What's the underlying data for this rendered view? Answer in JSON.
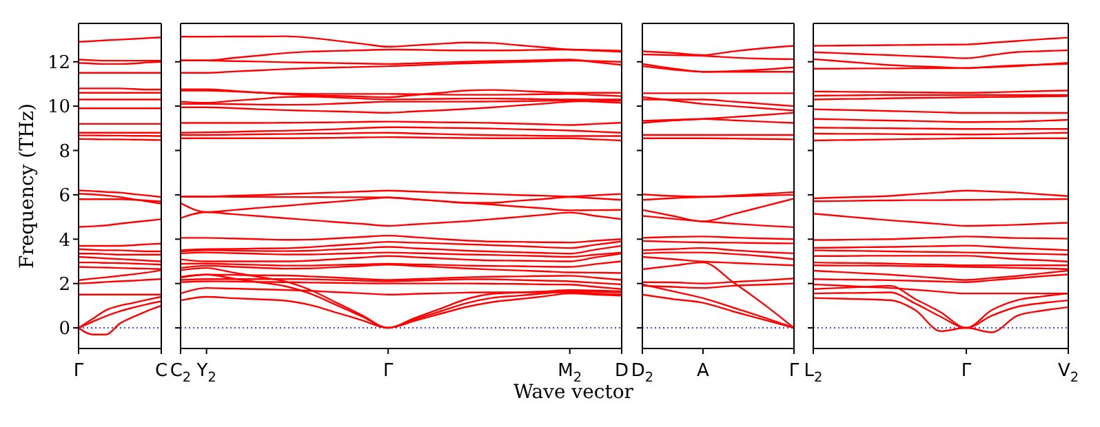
{
  "chart_data": [
    {
      "type": "line",
      "ylabel": "Frequency (THz)",
      "color": "#ff0000",
      "categories": [
        "Γ",
        null,
        null,
        null,
        null,
        null,
        "C"
      ],
      "ylim": [
        -0.93,
        13.73
      ],
      "yticks": [
        0,
        2,
        4,
        6,
        8,
        10,
        12
      ],
      "ref_lines": [
        {
          "axis": "y",
          "value": 0,
          "color": "#0000ff",
          "line_style": "dotted"
        }
      ],
      "series": [
        {
          "values": [
            12.9,
            12.93,
            12.97,
            13.0,
            13.03,
            13.07,
            13.1
          ]
        },
        {
          "values": [
            12.1,
            12.07,
            12.05,
            12.05,
            12.05,
            12.05,
            12.05
          ]
        },
        {
          "values": [
            11.95,
            11.92,
            11.9,
            11.9,
            11.92,
            11.97,
            12.0
          ]
        },
        {
          "values": [
            11.5,
            11.5,
            11.5,
            11.5,
            11.5,
            11.5,
            11.5
          ]
        },
        {
          "values": [
            10.8,
            10.8,
            10.8,
            10.8,
            10.77,
            10.75,
            10.75
          ]
        },
        {
          "values": [
            10.6,
            10.6,
            10.6,
            10.6,
            10.6,
            10.6,
            10.6
          ]
        },
        {
          "values": [
            10.3,
            10.3,
            10.3,
            10.3,
            10.3,
            10.3,
            10.3
          ]
        },
        {
          "values": [
            9.9,
            9.9,
            9.9,
            9.9,
            9.9,
            9.9,
            9.9
          ]
        },
        {
          "values": [
            9.2,
            9.2,
            9.2,
            9.2,
            9.2,
            9.2,
            9.2
          ]
        },
        {
          "values": [
            8.8,
            8.8,
            8.8,
            8.8,
            8.8,
            8.8,
            8.8
          ]
        },
        {
          "values": [
            8.68,
            8.68,
            8.67,
            8.67,
            8.66,
            8.66,
            8.65
          ]
        },
        {
          "values": [
            8.52,
            8.51,
            8.5,
            8.5,
            8.49,
            8.48,
            8.47
          ]
        },
        {
          "values": [
            6.2,
            6.17,
            6.13,
            6.1,
            6.03,
            5.97,
            5.9
          ]
        },
        {
          "values": [
            6.05,
            6.02,
            5.97,
            5.9,
            5.8,
            5.7,
            5.6
          ]
        },
        {
          "values": [
            5.8,
            5.8,
            5.8,
            5.8,
            5.78,
            5.74,
            5.7
          ]
        },
        {
          "values": [
            4.55,
            4.58,
            4.62,
            4.7,
            4.77,
            4.83,
            4.9
          ]
        },
        {
          "values": [
            3.7,
            3.7,
            3.7,
            3.7,
            3.73,
            3.77,
            3.8
          ]
        },
        {
          "values": [
            3.55,
            3.52,
            3.5,
            3.5,
            3.47,
            3.45,
            3.45
          ]
        },
        {
          "values": [
            3.35,
            3.35,
            3.33,
            3.3,
            3.3,
            3.3,
            3.3
          ]
        },
        {
          "values": [
            3.2,
            3.17,
            3.13,
            3.1,
            3.07,
            3.03,
            3.0
          ]
        },
        {
          "values": [
            2.95,
            2.95,
            2.93,
            2.92,
            2.9,
            2.88,
            2.85
          ]
        },
        {
          "values": [
            2.75,
            2.73,
            2.72,
            2.7,
            2.68,
            2.67,
            2.65
          ]
        },
        {
          "values": [
            2.15,
            2.22,
            2.28,
            2.35,
            2.42,
            2.5,
            2.6
          ]
        },
        {
          "values": [
            2.0,
            2.03,
            2.07,
            2.1,
            2.13,
            2.17,
            2.2
          ]
        },
        {
          "values": [
            1.5,
            1.5,
            1.5,
            1.5,
            1.5,
            1.5,
            1.5
          ]
        },
        {
          "values": [
            0,
            0.4,
            0.8,
            1.0,
            1.13,
            1.27,
            1.4
          ]
        },
        {
          "values": [
            0,
            0.27,
            0.53,
            0.75,
            0.92,
            1.07,
            1.2
          ]
        },
        {
          "values": [
            0,
            -0.3,
            -0.3,
            0.2,
            0.5,
            0.77,
            1.0
          ]
        }
      ]
    },
    {
      "type": "line",
      "xlabel": "Wave vector",
      "tick_labels": "x",
      "color": "#ff0000",
      "categories": [
        "C$_{2}$",
        "Y$_{2}$",
        null,
        null,
        null,
        null,
        null,
        null,
        "Γ",
        null,
        null,
        null,
        null,
        null,
        null,
        "M$_{2}$",
        null,
        "D"
      ],
      "ylim": [
        -0.93,
        13.73
      ],
      "yticks": [
        0,
        2,
        4,
        6,
        8,
        10,
        12
      ],
      "ref_lines": [
        {
          "axis": "y",
          "value": 0,
          "color": "#0000ff",
          "line_style": "dotted"
        }
      ],
      "series": [
        {
          "values": [
            13.13,
            13.13,
            13.14,
            13.14,
            13.15,
            13.08,
            12.95,
            12.81,
            12.68,
            12.74,
            12.81,
            12.87,
            12.85,
            12.75,
            12.65,
            12.55,
            12.53,
            12.5
          ]
        },
        {
          "values": [
            12.06,
            12.06,
            12.17,
            12.28,
            12.39,
            12.46,
            12.49,
            12.52,
            12.55,
            12.54,
            12.52,
            12.51,
            12.51,
            12.52,
            12.54,
            12.55,
            12.5,
            12.45
          ]
        },
        {
          "values": [
            12.06,
            12.06,
            12.03,
            12.01,
            11.98,
            11.96,
            11.94,
            11.92,
            11.9,
            11.93,
            11.97,
            12.0,
            12.03,
            12.05,
            12.08,
            12.1,
            11.98,
            11.86
          ]
        },
        {
          "values": [
            11.5,
            11.5,
            11.56,
            11.61,
            11.67,
            11.71,
            11.74,
            11.77,
            11.8,
            11.84,
            11.89,
            11.93,
            11.96,
            11.99,
            12.02,
            12.05,
            12.03,
            12.0
          ]
        },
        {
          "values": [
            10.76,
            10.76,
            10.69,
            10.61,
            10.54,
            10.49,
            10.46,
            10.43,
            10.4,
            10.5,
            10.6,
            10.7,
            10.73,
            10.69,
            10.64,
            10.6,
            10.6,
            10.6
          ]
        },
        {
          "values": [
            10.7,
            10.7,
            10.66,
            10.61,
            10.57,
            10.55,
            10.55,
            10.55,
            10.55,
            10.54,
            10.52,
            10.51,
            10.51,
            10.52,
            10.54,
            10.55,
            10.5,
            10.45
          ]
        },
        {
          "values": [
            10.2,
            10.15,
            10.24,
            10.32,
            10.41,
            10.43,
            10.39,
            10.34,
            10.3,
            10.31,
            10.33,
            10.34,
            10.34,
            10.33,
            10.31,
            10.3,
            10.3,
            10.3
          ]
        },
        {
          "values": [
            10.1,
            10.1,
            10.09,
            10.07,
            10.06,
            10.07,
            10.11,
            10.16,
            10.2,
            10.2,
            10.2,
            10.2,
            10.21,
            10.22,
            10.24,
            10.25,
            10.2,
            10.15
          ]
        },
        {
          "values": [
            9.95,
            9.95,
            9.91,
            9.86,
            9.82,
            9.79,
            9.76,
            9.73,
            9.7,
            9.76,
            9.81,
            9.87,
            9.94,
            10.03,
            10.11,
            10.2,
            10.23,
            10.25
          ]
        },
        {
          "values": [
            9.24,
            9.24,
            9.24,
            9.24,
            9.25,
            9.26,
            9.27,
            9.29,
            9.3,
            9.29,
            9.27,
            9.26,
            9.24,
            9.21,
            9.18,
            9.15,
            9.2,
            9.25
          ]
        },
        {
          "values": [
            8.8,
            8.82,
            8.84,
            8.87,
            8.89,
            8.92,
            8.96,
            9.01,
            9.05,
            9.04,
            9.02,
            9.01,
            8.99,
            8.96,
            8.93,
            8.9,
            8.85,
            8.8
          ]
        },
        {
          "values": [
            8.7,
            8.7,
            8.71,
            8.73,
            8.74,
            8.76,
            8.77,
            8.79,
            8.8,
            8.77,
            8.74,
            8.71,
            8.69,
            8.68,
            8.66,
            8.65,
            8.65,
            8.65
          ]
        },
        {
          "values": [
            8.55,
            8.55,
            8.55,
            8.55,
            8.55,
            8.56,
            8.57,
            8.59,
            8.6,
            8.59,
            8.57,
            8.56,
            8.55,
            8.55,
            8.55,
            8.55,
            8.5,
            8.45
          ]
        },
        {
          "values": [
            5.92,
            5.92,
            5.96,
            5.99,
            6.03,
            6.07,
            6.11,
            6.15,
            6.19,
            6.15,
            6.11,
            6.07,
            6.03,
            5.99,
            5.96,
            5.92,
            5.98,
            6.04
          ]
        },
        {
          "values": [
            5.63,
            5.22,
            5.31,
            5.41,
            5.5,
            5.6,
            5.69,
            5.79,
            5.88,
            5.8,
            5.72,
            5.64,
            5.64,
            5.73,
            5.81,
            5.9,
            5.84,
            5.77
          ]
        },
        {
          "values": [
            4.95,
            5.22,
            5.13,
            5.04,
            4.95,
            4.86,
            4.77,
            4.69,
            4.6,
            4.67,
            4.74,
            4.81,
            4.9,
            5.0,
            5.1,
            5.2,
            5.05,
            4.9
          ]
        },
        {
          "values": [
            5.92,
            5.92,
            5.91,
            5.91,
            5.9,
            5.9,
            5.89,
            5.89,
            5.88,
            5.8,
            5.72,
            5.64,
            5.56,
            5.47,
            5.39,
            5.3,
            5.31,
            5.32
          ]
        },
        {
          "values": [
            4.06,
            4.06,
            4.03,
            4.0,
            3.97,
            3.98,
            4.04,
            4.1,
            4.16,
            4.09,
            4.01,
            3.94,
            3.89,
            3.88,
            3.86,
            3.85,
            3.93,
            4.0
          ]
        },
        {
          "values": [
            3.5,
            3.55,
            3.56,
            3.58,
            3.59,
            3.64,
            3.72,
            3.8,
            3.88,
            3.84,
            3.81,
            3.77,
            3.73,
            3.69,
            3.64,
            3.6,
            3.75,
            3.9
          ]
        },
        {
          "values": [
            3.45,
            3.5,
            3.49,
            3.47,
            3.46,
            3.48,
            3.54,
            3.59,
            3.65,
            3.59,
            3.54,
            3.48,
            3.44,
            3.41,
            3.38,
            3.35,
            3.53,
            3.7
          ]
        },
        {
          "values": [
            3.36,
            3.4,
            3.37,
            3.34,
            3.31,
            3.31,
            3.34,
            3.37,
            3.4,
            3.37,
            3.34,
            3.31,
            3.29,
            3.26,
            3.23,
            3.2,
            3.3,
            3.4
          ]
        },
        {
          "values": [
            3.09,
            3.0,
            3.0,
            3.0,
            3.0,
            3.03,
            3.1,
            3.17,
            3.24,
            3.19,
            3.13,
            3.08,
            3.04,
            3.03,
            3.01,
            3.0,
            3.18,
            3.35
          ]
        },
        {
          "values": [
            2.89,
            2.9,
            2.87,
            2.84,
            2.81,
            2.81,
            2.84,
            2.86,
            2.89,
            2.86,
            2.84,
            2.81,
            2.79,
            2.78,
            2.76,
            2.75,
            2.88,
            3.0
          ]
        },
        {
          "values": [
            2.7,
            2.8,
            2.76,
            2.71,
            2.67,
            2.68,
            2.74,
            2.79,
            2.85,
            2.79,
            2.74,
            2.68,
            2.63,
            2.59,
            2.55,
            2.5,
            2.49,
            2.47
          ]
        },
        {
          "values": [
            2.27,
            2.4,
            2.39,
            2.37,
            2.36,
            2.32,
            2.27,
            2.21,
            2.16,
            2.2,
            2.24,
            2.28,
            2.31,
            2.32,
            2.34,
            2.35,
            2.26,
            2.16
          ]
        },
        {
          "values": [
            2.16,
            2.2,
            2.2,
            2.2,
            2.2,
            2.19,
            2.16,
            2.13,
            2.1,
            2.13,
            2.16,
            2.19,
            2.19,
            2.16,
            2.13,
            2.1,
            2.03,
            1.96
          ]
        },
        {
          "values": [
            2.06,
            2.1,
            2.09,
            2.07,
            2.06,
            2.04,
            2.03,
            2.01,
            2.0,
            2.0,
            2.0,
            2.0,
            1.99,
            1.98,
            1.96,
            1.95,
            1.85,
            1.75
          ]
        },
        {
          "values": [
            1.55,
            1.8,
            1.77,
            1.74,
            1.71,
            1.67,
            1.61,
            1.56,
            1.5,
            1.53,
            1.56,
            1.59,
            1.6,
            1.6,
            1.6,
            1.6,
            1.55,
            1.5
          ]
        },
        {
          "values": [
            2.6,
            2.7,
            2.5,
            2.3,
            2.1,
            1.71,
            1.14,
            0.57,
            0,
            0.43,
            0.86,
            1.29,
            1.53,
            1.59,
            1.64,
            1.7,
            1.68,
            1.65
          ]
        },
        {
          "values": [
            2.3,
            2.4,
            2.23,
            2.06,
            1.89,
            1.54,
            1.03,
            0.51,
            0,
            0.37,
            0.74,
            1.11,
            1.35,
            1.45,
            1.55,
            1.65,
            1.63,
            1.6
          ]
        },
        {
          "values": [
            1.24,
            1.4,
            1.34,
            1.29,
            1.23,
            1.03,
            0.69,
            0.34,
            0,
            0.31,
            0.63,
            0.94,
            1.16,
            1.29,
            1.42,
            1.55,
            1.5,
            1.45
          ]
        }
      ]
    },
    {
      "type": "line",
      "tick_labels": "x",
      "color": "#ff0000",
      "categories": [
        "D$_{2}$",
        null,
        "A",
        null,
        null,
        "Γ"
      ],
      "ylim": [
        -0.93,
        13.73
      ],
      "yticks": [
        0,
        2,
        4,
        6,
        8,
        10,
        12
      ],
      "ref_lines": [
        {
          "axis": "y",
          "value": 0,
          "color": "#0000ff",
          "line_style": "dotted"
        }
      ],
      "series": [
        {
          "values": [
            12.47,
            12.4,
            12.3,
            12.47,
            12.61,
            12.72
          ]
        },
        {
          "values": [
            12.33,
            12.3,
            12.27,
            12.19,
            12.14,
            12.12
          ]
        },
        {
          "values": [
            11.9,
            11.7,
            11.55,
            11.58,
            11.65,
            11.75
          ]
        },
        {
          "values": [
            11.8,
            11.65,
            11.55,
            11.55,
            11.55,
            11.55
          ]
        },
        {
          "values": [
            10.58,
            10.58,
            10.58,
            10.58,
            10.58,
            10.58
          ]
        },
        {
          "values": [
            10.41,
            10.25,
            10.1,
            10.0,
            9.9,
            9.8
          ]
        },
        {
          "values": [
            10.3,
            10.3,
            10.3,
            10.2,
            10.1,
            10.0
          ]
        },
        {
          "values": [
            9.24,
            9.35,
            9.42,
            9.51,
            9.6,
            9.7
          ]
        },
        {
          "values": [
            9.34,
            9.38,
            9.42,
            9.36,
            9.3,
            9.24
          ]
        },
        {
          "values": [
            8.7,
            8.7,
            8.7,
            8.7,
            8.7,
            8.7
          ]
        },
        {
          "values": [
            8.55,
            8.55,
            8.55,
            8.54,
            8.52,
            8.5
          ]
        },
        {
          "values": [
            6.02,
            5.95,
            5.92,
            5.97,
            6.04,
            6.12
          ]
        },
        {
          "values": [
            5.77,
            5.85,
            5.9,
            5.93,
            5.97,
            6.0
          ]
        },
        {
          "values": [
            5.32,
            5.05,
            4.8,
            5.13,
            5.48,
            5.83
          ]
        },
        {
          "values": [
            5.05,
            4.92,
            4.8,
            4.7,
            4.61,
            4.54
          ]
        },
        {
          "values": [
            4.06,
            4.1,
            4.12,
            4.07,
            4.03,
            4.0
          ]
        },
        {
          "values": [
            3.92,
            3.88,
            3.85,
            3.84,
            3.82,
            3.81
          ]
        },
        {
          "values": [
            3.5,
            3.55,
            3.6,
            3.5,
            3.42,
            3.36
          ]
        },
        {
          "values": [
            3.36,
            3.4,
            3.4,
            3.33,
            3.23,
            3.09
          ]
        },
        {
          "values": [
            3.2,
            3.1,
            2.99,
            2.93,
            2.87,
            2.82
          ]
        },
        {
          "values": [
            2.06,
            2.05,
            2.0,
            2.07,
            2.14,
            2.23
          ]
        },
        {
          "values": [
            1.9,
            1.85,
            1.8,
            1.9,
            1.95,
            2.0
          ]
        },
        {
          "values": [
            2.64,
            2.8,
            2.95,
            2.05,
            1.07,
            0
          ]
        },
        {
          "values": [
            1.96,
            1.65,
            1.34,
            0.91,
            0.47,
            0
          ]
        },
        {
          "values": [
            1.5,
            1.3,
            1.13,
            0.74,
            0.37,
            0
          ]
        }
      ]
    },
    {
      "type": "line",
      "tick_labels": "x",
      "color": "#ff0000",
      "categories": [
        "L$_{2}$",
        null,
        null,
        null,
        null,
        null,
        "Γ",
        null,
        null,
        null,
        "V$_{2}$"
      ],
      "ylim": [
        -0.93,
        13.73
      ],
      "yticks": [
        0,
        2,
        4,
        6,
        8,
        10,
        12
      ],
      "ref_lines": [
        {
          "axis": "y",
          "value": 0,
          "color": "#0000ff",
          "line_style": "dotted"
        }
      ],
      "series": [
        {
          "values": [
            12.72,
            12.73,
            12.74,
            12.75,
            12.76,
            12.77,
            12.78,
            12.86,
            12.94,
            13.02,
            13.09
          ]
        },
        {
          "values": [
            12.43,
            12.39,
            12.34,
            12.3,
            12.25,
            12.21,
            12.16,
            12.3,
            12.44,
            12.48,
            12.52
          ]
        },
        {
          "values": [
            12.12,
            12.03,
            11.94,
            11.85,
            11.8,
            11.76,
            11.71,
            11.78,
            11.84,
            11.87,
            11.9
          ]
        },
        {
          "values": [
            11.69,
            11.69,
            11.7,
            11.7,
            11.71,
            11.71,
            11.72,
            11.76,
            11.8,
            11.88,
            11.95
          ]
        },
        {
          "values": [
            10.66,
            10.65,
            10.64,
            10.63,
            10.62,
            10.61,
            10.6,
            10.62,
            10.65,
            10.68,
            10.7
          ]
        },
        {
          "values": [
            10.47,
            10.48,
            10.49,
            10.5,
            10.5,
            10.5,
            10.5,
            10.5,
            10.5,
            10.5,
            10.5
          ]
        },
        {
          "values": [
            10.3,
            10.32,
            10.33,
            10.35,
            10.37,
            10.38,
            10.4,
            10.41,
            10.42,
            10.44,
            10.45
          ]
        },
        {
          "values": [
            9.86,
            9.83,
            9.81,
            9.78,
            9.75,
            9.72,
            9.69,
            9.69,
            9.69,
            9.69,
            9.69
          ]
        },
        {
          "values": [
            9.42,
            9.4,
            9.37,
            9.35,
            9.33,
            9.3,
            9.28,
            9.29,
            9.3,
            9.34,
            9.38
          ]
        },
        {
          "values": [
            9.03,
            9.02,
            9.01,
            9.0,
            8.99,
            8.98,
            8.97,
            8.97,
            8.97,
            8.97,
            8.97
          ]
        },
        {
          "values": [
            8.76,
            8.75,
            8.75,
            8.74,
            8.73,
            8.73,
            8.72,
            8.73,
            8.75,
            8.78,
            8.8
          ]
        },
        {
          "values": [
            8.45,
            8.47,
            8.48,
            8.5,
            8.52,
            8.53,
            8.55,
            8.55,
            8.55,
            8.55,
            8.55
          ]
        },
        {
          "values": [
            5.84,
            5.88,
            5.91,
            5.95,
            6.03,
            6.11,
            6.19,
            6.15,
            6.1,
            6.02,
            5.94
          ]
        },
        {
          "values": [
            5.71,
            5.72,
            5.74,
            5.75,
            5.76,
            5.76,
            5.77,
            5.78,
            5.8,
            5.8,
            5.81
          ]
        },
        {
          "values": [
            5.15,
            5.05,
            4.95,
            4.85,
            4.77,
            4.68,
            4.6,
            4.62,
            4.65,
            4.7,
            4.74
          ]
        },
        {
          "values": [
            3.96,
            3.97,
            3.99,
            4.0,
            4.04,
            4.08,
            4.12,
            4.09,
            4.05,
            4.04,
            4.02
          ]
        },
        {
          "values": [
            3.61,
            3.62,
            3.64,
            3.65,
            3.67,
            3.69,
            3.71,
            3.66,
            3.6,
            3.55,
            3.5
          ]
        },
        {
          "values": [
            3.5,
            3.48,
            3.47,
            3.45,
            3.43,
            3.42,
            3.4,
            3.38,
            3.35,
            3.33,
            3.3
          ]
        },
        {
          "values": [
            3.24,
            3.24,
            3.25,
            3.25,
            3.25,
            3.25,
            3.25,
            3.18,
            3.1,
            3.05,
            2.99
          ]
        },
        {
          "values": [
            2.95,
            2.93,
            2.92,
            2.9,
            2.87,
            2.85,
            2.82,
            2.82,
            2.82,
            2.82,
            2.82
          ]
        },
        {
          "values": [
            2.82,
            2.81,
            2.81,
            2.8,
            2.78,
            2.77,
            2.75,
            2.73,
            2.7,
            2.68,
            2.65
          ]
        },
        {
          "values": [
            2.58,
            2.52,
            2.46,
            2.4,
            2.32,
            2.24,
            2.16,
            2.25,
            2.34,
            2.46,
            2.58
          ]
        },
        {
          "values": [
            2.2,
            2.18,
            2.17,
            2.15,
            2.12,
            2.09,
            2.06,
            2.15,
            2.24,
            2.33,
            2.41
          ]
        },
        {
          "values": [
            1.96,
            1.91,
            1.85,
            1.8,
            1.72,
            1.63,
            1.55,
            1.55,
            1.55,
            1.55,
            1.55
          ]
        },
        {
          "values": [
            1.75,
            1.8,
            1.85,
            1.9,
            1.3,
            0.7,
            0,
            0.8,
            1.25,
            1.42,
            1.55
          ]
        },
        {
          "values": [
            1.55,
            1.57,
            1.58,
            1.6,
            1.1,
            0.5,
            0,
            0.55,
            0.95,
            1.12,
            1.24
          ]
        },
        {
          "values": [
            1.35,
            1.32,
            1.29,
            1.25,
            0.8,
            -0.15,
            0,
            -0.2,
            0.55,
            0.78,
            0.93
          ]
        }
      ]
    }
  ]
}
